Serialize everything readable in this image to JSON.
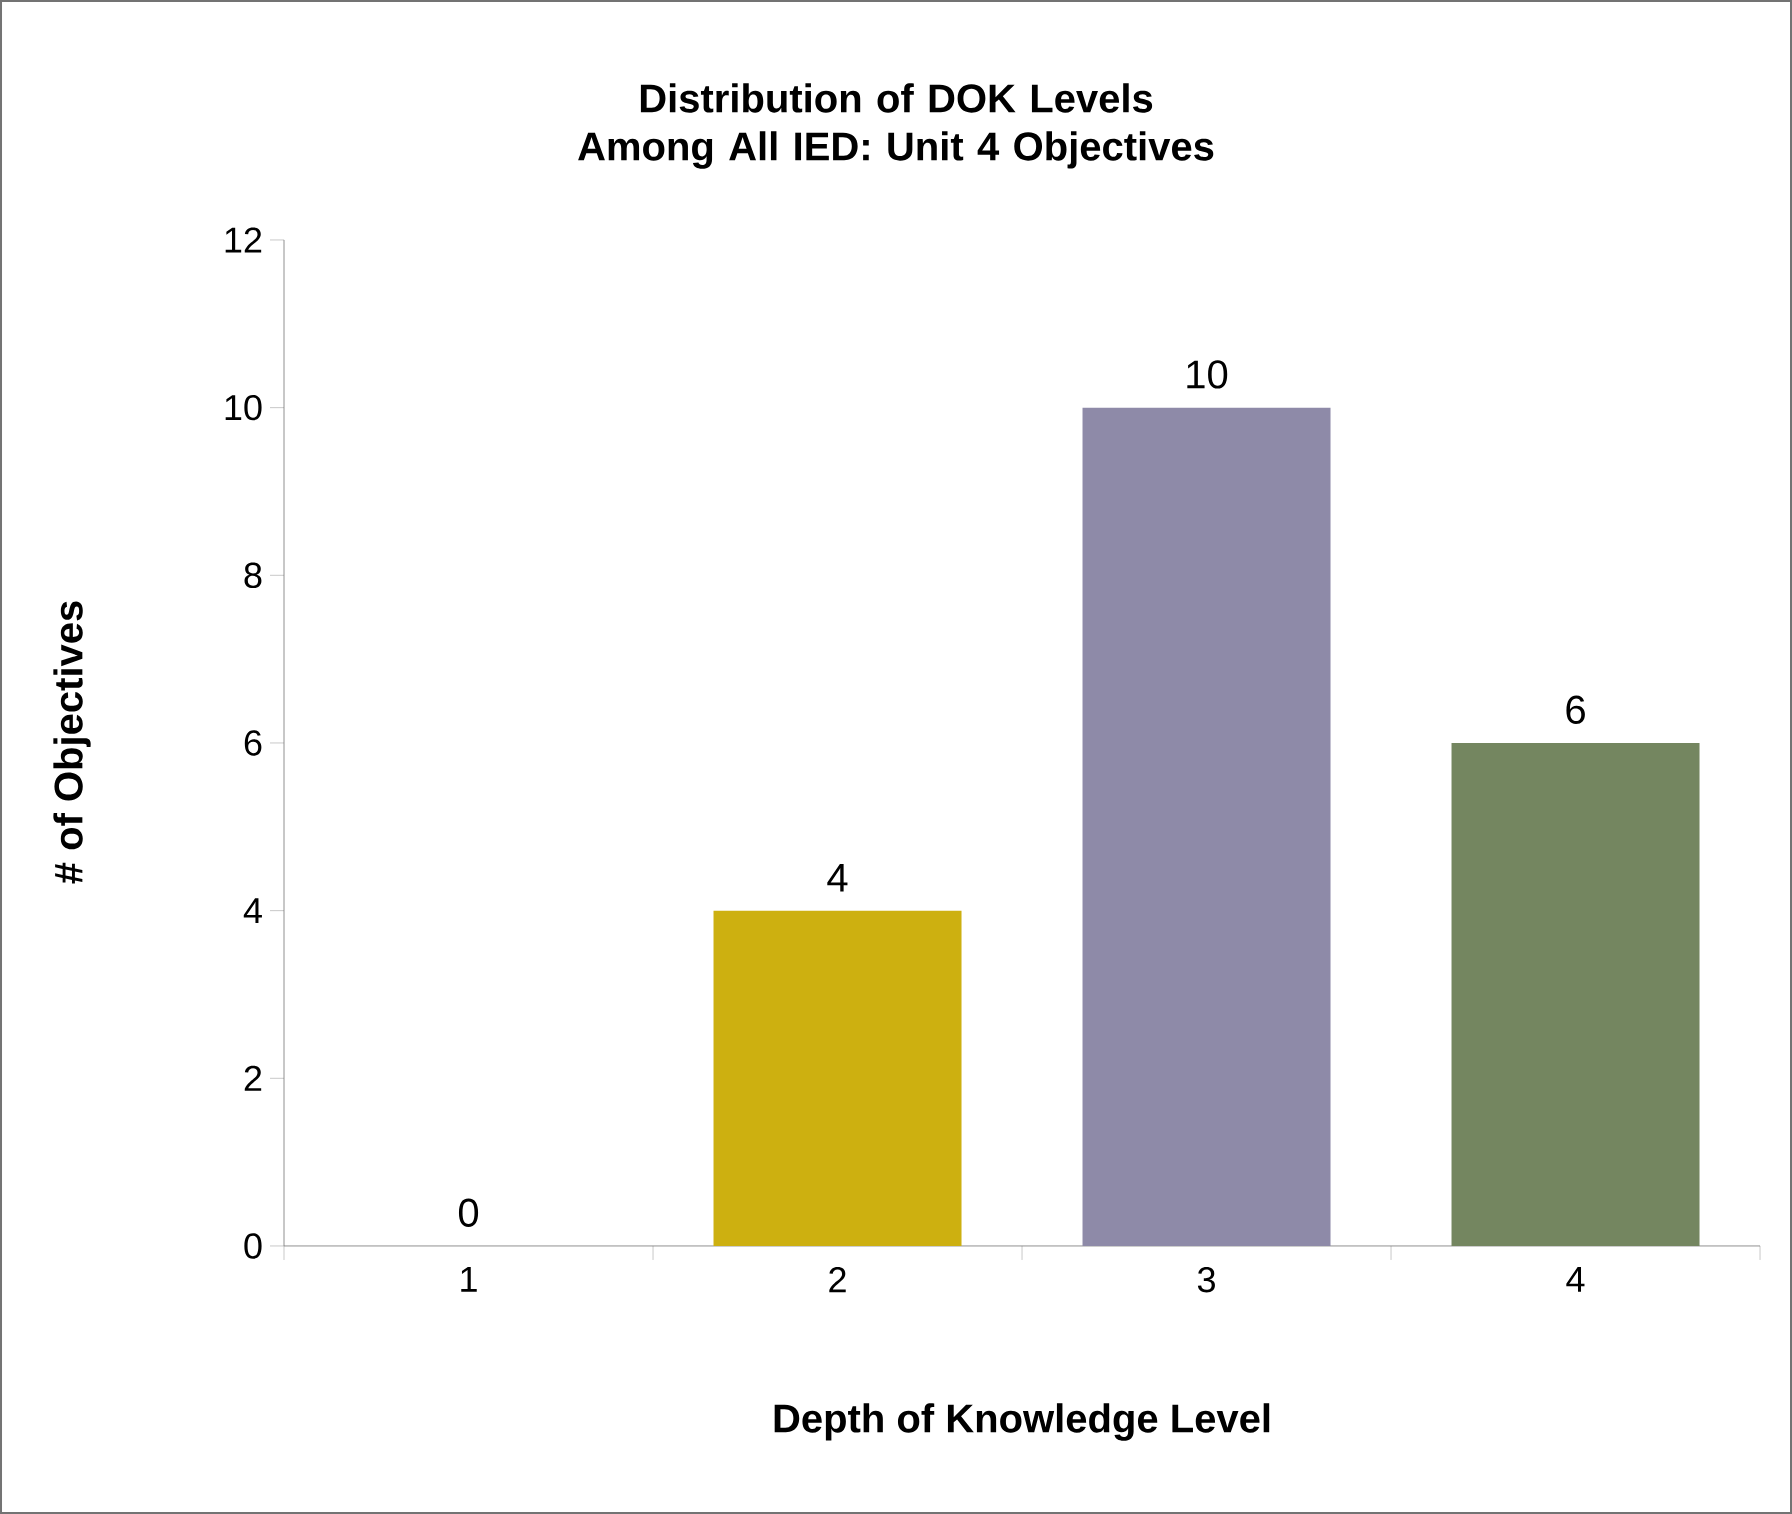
{
  "chart_data": {
    "type": "bar",
    "title": "Distribution of DOK Levels Among All IED: Unit 4 Objectives",
    "xlabel": "Depth of Knowledge Level",
    "ylabel": "# of Objectives",
    "categories": [
      "1",
      "2",
      "3",
      "4"
    ],
    "values": [
      0,
      4,
      10,
      6
    ],
    "colors": [
      "#4f81bd",
      "#cdb010",
      "#8e8aa8",
      "#748660"
    ],
    "ylim": [
      0,
      12
    ],
    "yticks": [
      0,
      2,
      4,
      6,
      8,
      10,
      12
    ],
    "grid": false,
    "data_labels": true
  }
}
